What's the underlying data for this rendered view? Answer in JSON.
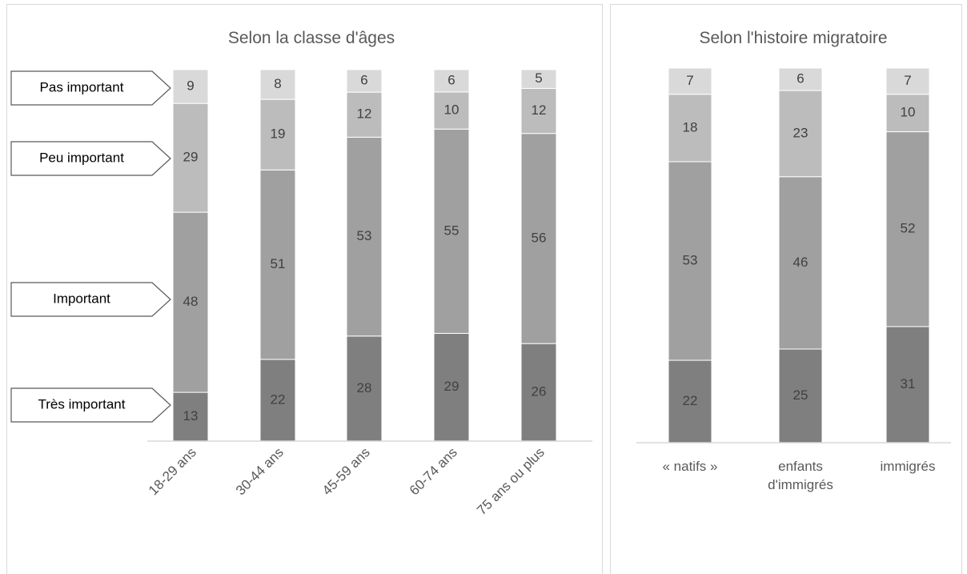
{
  "colors": {
    "tres_important": "#7f7f7f",
    "important": "#a0a0a0",
    "peu_important": "#bcbcbc",
    "pas_important": "#d9d9d9",
    "axis": "#d9d9d9",
    "callout_border": "#595959"
  },
  "legend_callouts": [
    "Pas important",
    "Peu important",
    "Important",
    "Très important"
  ],
  "chart_data": [
    {
      "type": "bar",
      "stacked": true,
      "title": "Selon la classe d'âges",
      "categories": [
        "18-29 ans",
        "30-44 ans",
        "45-59 ans",
        "60-74 ans",
        "75 ans ou plus"
      ],
      "series": [
        {
          "name": "Très important",
          "values": [
            13,
            22,
            28,
            29,
            26
          ]
        },
        {
          "name": "Important",
          "values": [
            48,
            51,
            53,
            55,
            56
          ]
        },
        {
          "name": "Peu important",
          "values": [
            29,
            19,
            12,
            10,
            12
          ]
        },
        {
          "name": "Pas important",
          "values": [
            9,
            8,
            6,
            6,
            5
          ]
        }
      ],
      "ylim": [
        0,
        100
      ],
      "grid": false
    },
    {
      "type": "bar",
      "stacked": true,
      "title": "Selon l'histoire migratoire",
      "categories": [
        "« natifs »",
        "enfants d'immigrés",
        "immigrés"
      ],
      "series": [
        {
          "name": "Très important",
          "values": [
            22,
            25,
            31
          ]
        },
        {
          "name": "Important",
          "values": [
            53,
            46,
            52
          ]
        },
        {
          "name": "Peu important",
          "values": [
            18,
            23,
            10
          ]
        },
        {
          "name": "Pas important",
          "values": [
            7,
            6,
            7
          ]
        }
      ],
      "ylim": [
        0,
        100
      ],
      "grid": false
    }
  ]
}
